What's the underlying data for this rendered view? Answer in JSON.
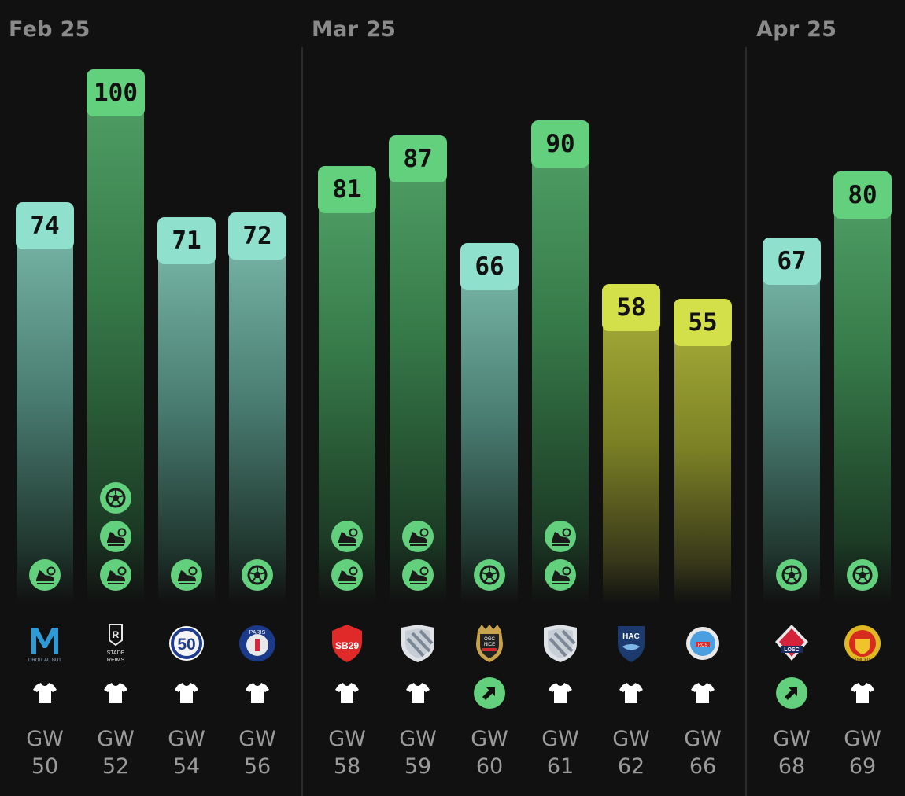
{
  "months": [
    "Feb 25",
    "Mar 25",
    "Apr 25"
  ],
  "colors": {
    "teal": "#8fe0cc",
    "green": "#63d07e",
    "yellow": "#d4e04a",
    "background": "#111111",
    "muted_text": "#9b9b9b"
  },
  "chart_data": {
    "type": "bar",
    "title": "",
    "xlabel": "",
    "ylabel": "",
    "ylim": [
      0,
      100
    ],
    "categories": [
      "GW 50",
      "GW 52",
      "GW 54",
      "GW 56",
      "GW 58",
      "GW 59",
      "GW 60",
      "GW 61",
      "GW 62",
      "GW 66",
      "GW 68",
      "GW 69"
    ],
    "values": [
      74,
      100,
      71,
      72,
      81,
      87,
      66,
      90,
      58,
      55,
      67,
      80
    ],
    "bars": [
      {
        "gw_top": "GW",
        "gw_num": "50",
        "value": 74,
        "score": "74",
        "tier": "teal",
        "month": "Feb 25",
        "opponent": "Olympique de Marseille",
        "crest_text": "DROIT AU BUT",
        "events": [
          "boot-icon"
        ],
        "status": "shirt-icon"
      },
      {
        "gw_top": "GW",
        "gw_num": "52",
        "value": 100,
        "score": "100",
        "tier": "green",
        "month": "Feb 25",
        "opponent": "Stade de Reims",
        "crest_text": "STADE REIMS",
        "events": [
          "ball-icon",
          "boot-icon",
          "boot-icon"
        ],
        "status": "shirt-icon"
      },
      {
        "gw_top": "GW",
        "gw_num": "54",
        "value": 71,
        "score": "71",
        "tier": "teal",
        "month": "Feb 25",
        "opponent": "Montpellier HSC",
        "crest_text": "50",
        "events": [
          "boot-icon"
        ],
        "status": "shirt-icon"
      },
      {
        "gw_top": "GW",
        "gw_num": "56",
        "value": 72,
        "score": "72",
        "tier": "teal",
        "month": "Feb 25",
        "opponent": "Paris Saint-Germain",
        "crest_text": "PARIS",
        "events": [
          "ball-icon"
        ],
        "status": "shirt-icon"
      },
      {
        "gw_top": "GW",
        "gw_num": "58",
        "value": 81,
        "score": "81",
        "tier": "green",
        "month": "Mar 25",
        "opponent": "Stade Brestois",
        "crest_text": "SB29",
        "events": [
          "boot-icon",
          "boot-icon"
        ],
        "status": "shirt-icon"
      },
      {
        "gw_top": "GW",
        "gw_num": "59",
        "value": 87,
        "score": "87",
        "tier": "green",
        "month": "Mar 25",
        "opponent": "Generic Club",
        "crest_text": "",
        "events": [
          "boot-icon",
          "boot-icon"
        ],
        "status": "shirt-icon"
      },
      {
        "gw_top": "GW",
        "gw_num": "60",
        "value": 66,
        "score": "66",
        "tier": "teal",
        "month": "Mar 25",
        "opponent": "OGC Nice",
        "crest_text": "OGC NICE",
        "events": [
          "ball-icon"
        ],
        "status": "boost-icon"
      },
      {
        "gw_top": "GW",
        "gw_num": "61",
        "value": 90,
        "score": "90",
        "tier": "green",
        "month": "Mar 25",
        "opponent": "Generic Club",
        "crest_text": "",
        "events": [
          "boot-icon",
          "boot-icon"
        ],
        "status": "shirt-icon"
      },
      {
        "gw_top": "GW",
        "gw_num": "62",
        "value": 58,
        "score": "58",
        "tier": "yellow",
        "month": "Mar 25",
        "opponent": "Le Havre AC",
        "crest_text": "HAC",
        "events": [],
        "status": "shirt-icon"
      },
      {
        "gw_top": "GW",
        "gw_num": "66",
        "value": 55,
        "score": "55",
        "tier": "yellow",
        "month": "Mar 25",
        "opponent": "RC Strasbourg",
        "crest_text": "RCS",
        "events": [],
        "status": "shirt-icon"
      },
      {
        "gw_top": "GW",
        "gw_num": "68",
        "value": 67,
        "score": "67",
        "tier": "teal",
        "month": "Apr 25",
        "opponent": "LOSC Lille",
        "crest_text": "LOSC",
        "events": [
          "ball-icon"
        ],
        "status": "boost-icon"
      },
      {
        "gw_top": "GW",
        "gw_num": "69",
        "value": 80,
        "score": "80",
        "tier": "green",
        "month": "Apr 25",
        "opponent": "Manchester United",
        "crest_text": "UNITED",
        "events": [
          "ball-icon"
        ],
        "status": "shirt-icon"
      }
    ]
  }
}
